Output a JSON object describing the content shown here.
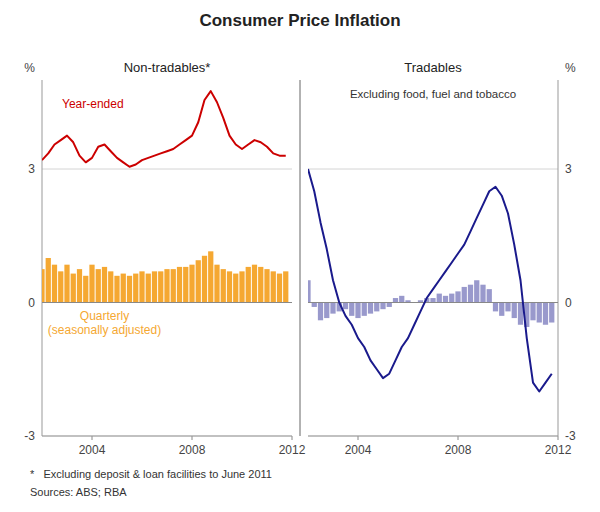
{
  "title": "Consumer Price Inflation",
  "annotations": [
    "*   Excluding deposit & loan facilities to June 2011",
    "Sources: ABS; RBA"
  ],
  "chart_data": [
    {
      "type": "bar",
      "title": "Non-tradables*",
      "ylabel": "%",
      "x": [
        2002.0,
        2002.25,
        2002.5,
        2002.75,
        2003.0,
        2003.25,
        2003.5,
        2003.75,
        2004.0,
        2004.25,
        2004.5,
        2004.75,
        2005.0,
        2005.25,
        2005.5,
        2005.75,
        2006.0,
        2006.25,
        2006.5,
        2006.75,
        2007.0,
        2007.25,
        2007.5,
        2007.75,
        2008.0,
        2008.25,
        2008.5,
        2008.75,
        2009.0,
        2009.25,
        2009.5,
        2009.75,
        2010.0,
        2010.25,
        2010.5,
        2010.75,
        2011.0,
        2011.25,
        2011.5,
        2011.75
      ],
      "series": [
        {
          "name": "Quarterly\n(seasonally adjusted)",
          "type": "bar",
          "color": "#f5a832",
          "values": [
            0.75,
            1.0,
            0.85,
            0.7,
            0.85,
            0.65,
            0.75,
            0.6,
            0.85,
            0.75,
            0.8,
            0.7,
            0.6,
            0.65,
            0.6,
            0.65,
            0.7,
            0.65,
            0.7,
            0.7,
            0.75,
            0.75,
            0.8,
            0.8,
            0.85,
            0.95,
            1.05,
            1.15,
            0.85,
            0.75,
            0.7,
            0.65,
            0.7,
            0.8,
            0.85,
            0.8,
            0.75,
            0.7,
            0.65,
            0.7
          ]
        },
        {
          "name": "Year-ended",
          "type": "line",
          "color": "#cc0000",
          "values": [
            3.2,
            3.35,
            3.55,
            3.65,
            3.75,
            3.6,
            3.3,
            3.15,
            3.25,
            3.5,
            3.55,
            3.4,
            3.25,
            3.15,
            3.05,
            3.1,
            3.2,
            3.25,
            3.3,
            3.35,
            3.4,
            3.45,
            3.55,
            3.65,
            3.75,
            4.05,
            4.55,
            4.75,
            4.5,
            4.15,
            3.75,
            3.55,
            3.45,
            3.55,
            3.65,
            3.6,
            3.5,
            3.35,
            3.3,
            3.3
          ]
        }
      ],
      "xlim": [
        2002,
        2012
      ],
      "xticks": [
        2004,
        2008,
        2012
      ],
      "ylim": [
        -3,
        5
      ],
      "yticks": [
        -3,
        0,
        3
      ],
      "grid": true
    },
    {
      "type": "bar",
      "title": "Tradables",
      "subtitle": "Excluding food, fuel and tobacco",
      "ylabel": "%",
      "x": [
        2002.0,
        2002.25,
        2002.5,
        2002.75,
        2003.0,
        2003.25,
        2003.5,
        2003.75,
        2004.0,
        2004.25,
        2004.5,
        2004.75,
        2005.0,
        2005.25,
        2005.5,
        2005.75,
        2006.0,
        2006.25,
        2006.5,
        2006.75,
        2007.0,
        2007.25,
        2007.5,
        2007.75,
        2008.0,
        2008.25,
        2008.5,
        2008.75,
        2009.0,
        2009.25,
        2009.5,
        2009.75,
        2010.0,
        2010.25,
        2010.5,
        2010.75,
        2011.0,
        2011.25,
        2011.5,
        2011.75
      ],
      "series": [
        {
          "type": "bar",
          "color": "#9999cc",
          "values": [
            0.5,
            -0.1,
            -0.4,
            -0.35,
            -0.25,
            -0.2,
            -0.15,
            -0.3,
            -0.35,
            -0.3,
            -0.25,
            -0.2,
            -0.15,
            -0.1,
            0.1,
            0.15,
            0.05,
            0.0,
            0.05,
            0.1,
            0.1,
            0.2,
            0.15,
            0.2,
            0.25,
            0.35,
            0.4,
            0.5,
            0.4,
            0.3,
            -0.2,
            -0.3,
            -0.2,
            -0.35,
            -0.5,
            -0.55,
            -0.4,
            -0.45,
            -0.5,
            -0.45
          ]
        },
        {
          "type": "line",
          "color": "#1a1a8c",
          "values": [
            3.0,
            2.5,
            1.8,
            1.2,
            0.5,
            0.0,
            -0.3,
            -0.5,
            -0.8,
            -1.0,
            -1.3,
            -1.5,
            -1.7,
            -1.6,
            -1.3,
            -1.0,
            -0.8,
            -0.5,
            -0.2,
            0.1,
            0.3,
            0.5,
            0.7,
            0.9,
            1.1,
            1.3,
            1.6,
            1.9,
            2.2,
            2.5,
            2.6,
            2.4,
            2.0,
            1.3,
            0.5,
            -0.8,
            -1.8,
            -2.0,
            -1.8,
            -1.6
          ]
        }
      ],
      "xlim": [
        2002,
        2012
      ],
      "xticks": [
        2004,
        2008,
        2012
      ],
      "ylim": [
        -3,
        5
      ],
      "yticks": [
        -3,
        0,
        3
      ],
      "grid": true
    }
  ]
}
